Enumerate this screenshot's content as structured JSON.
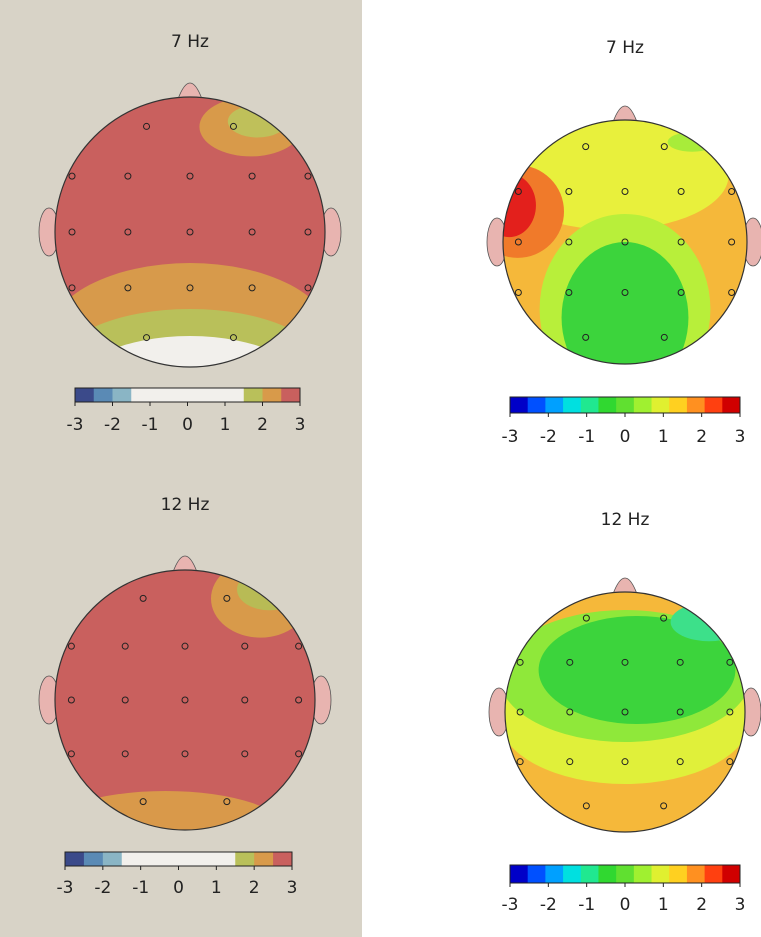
{
  "panels": [
    {
      "title": "7 Hz",
      "colorbar": {
        "colors": [
          "#3b4a8a",
          "#5a8ab5",
          "#8ab5c5",
          "#f2f0ec",
          "#f2f0ec",
          "#f2f0ec",
          "#f2f0ec",
          "#f2f0ec",
          "#f2f0ec",
          "#b9c05a",
          "#d89a4a",
          "#c9605e"
        ],
        "ticks": [
          -3,
          -2,
          -1,
          0,
          1,
          2,
          3
        ]
      }
    },
    {
      "title": "12 Hz",
      "colorbar": {
        "colors": [
          "#3b4a8a",
          "#5a8ab5",
          "#8ab5c5",
          "#f2f0ec",
          "#f2f0ec",
          "#f2f0ec",
          "#f2f0ec",
          "#f2f0ec",
          "#f2f0ec",
          "#b9c05a",
          "#d89a4a",
          "#c9605e"
        ],
        "ticks": [
          -3,
          -2,
          -1,
          0,
          1,
          2,
          3
        ]
      }
    },
    {
      "title": "7 Hz",
      "colorbar": {
        "colors": [
          "#0000c8",
          "#0050ff",
          "#00a0ff",
          "#00e0e0",
          "#20e890",
          "#30d830",
          "#60e030",
          "#a0f030",
          "#e0f030",
          "#ffd020",
          "#ff9020",
          "#ff4010",
          "#d00000"
        ],
        "ticks": [
          -3,
          -2,
          -1,
          0,
          1,
          2,
          3
        ]
      }
    },
    {
      "title": "12 Hz",
      "colorbar": {
        "colors": [
          "#0000c8",
          "#0050ff",
          "#00a0ff",
          "#00e0e0",
          "#20e890",
          "#30d830",
          "#60e030",
          "#a0f030",
          "#e0f030",
          "#ffd020",
          "#ff9020",
          "#ff4010",
          "#d00000"
        ],
        "ticks": [
          -3,
          -2,
          -1,
          0,
          1,
          2,
          3
        ]
      }
    }
  ]
}
